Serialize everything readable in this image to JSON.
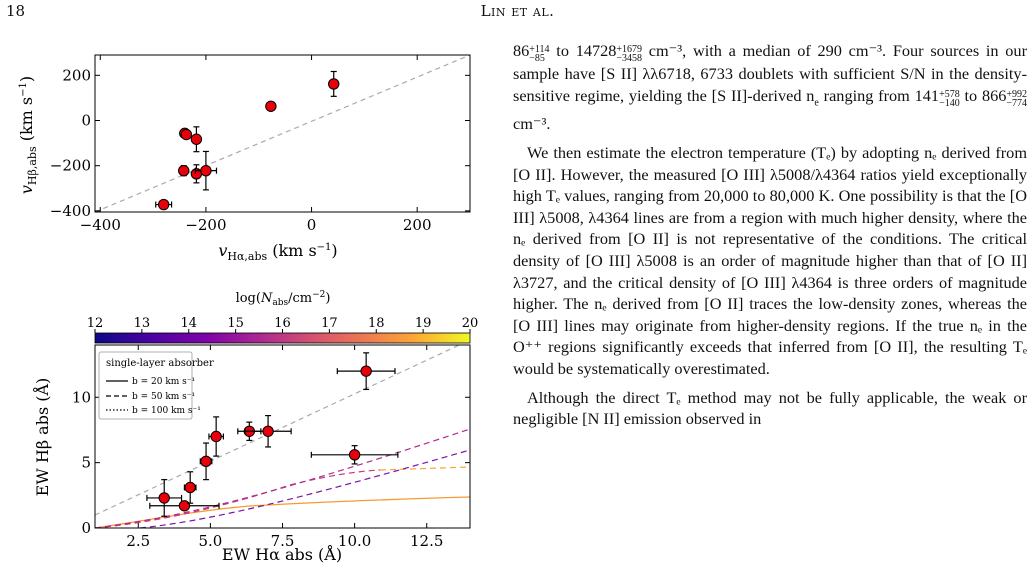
{
  "header": {
    "page_number": "18",
    "running_title": "Lin et al."
  },
  "figure_top": {
    "xlabel": "ν_Hα,abs (km s⁻¹)",
    "ylabel": "ν_Hβ,abs (km s⁻¹)"
  },
  "figure_bottom": {
    "colorbar_label": "log(N_abs/cm⁻²)",
    "colorbar_ticks": [
      "12",
      "13",
      "14",
      "15",
      "16",
      "17",
      "18",
      "19",
      "20"
    ],
    "xlabel": "EW Hα abs (Å)",
    "ylabel": "EW Hβ abs (Å)",
    "legend_title": "single-layer absorber",
    "legend_items": [
      "b = 20 km s⁻¹",
      "b = 50 km s⁻¹",
      "b = 100 km s⁻¹"
    ]
  },
  "chart_data": [
    {
      "type": "scatter",
      "title": "",
      "xlabel": "ν_Hα,abs (km s⁻¹)",
      "ylabel": "ν_Hβ,abs (km s⁻¹)",
      "xlim": [
        -410,
        300
      ],
      "ylim": [
        -405,
        290
      ],
      "xticks": [
        -400,
        -200,
        0,
        200
      ],
      "yticks": [
        -400,
        -200,
        0,
        200
      ],
      "points": [
        {
          "x": -280,
          "y": -372,
          "xerr": 15,
          "yerr": 0
        },
        {
          "x": -242,
          "y": -222,
          "xerr": 8,
          "yerr": 22
        },
        {
          "x": -240,
          "y": -57,
          "xerr": 8,
          "yerr": 12
        },
        {
          "x": -237,
          "y": -62,
          "xerr": 6,
          "yerr": 10
        },
        {
          "x": -218,
          "y": -83,
          "xerr": 6,
          "yerr": 55
        },
        {
          "x": -218,
          "y": -236,
          "xerr": 8,
          "yerr": 40
        },
        {
          "x": -200,
          "y": -222,
          "xerr": 20,
          "yerr": 85
        },
        {
          "x": -77,
          "y": 63,
          "xerr": 3,
          "yerr": 6
        },
        {
          "x": 42,
          "y": 162,
          "xerr": 4,
          "yerr": 55
        }
      ],
      "reference_line": "y = x (dashed grey)",
      "grid": false
    },
    {
      "type": "scatter",
      "title": "",
      "xlabel": "EW Hα abs (Å)",
      "ylabel": "EW Hβ abs (Å)",
      "xlim": [
        1,
        14
      ],
      "ylim": [
        0,
        14
      ],
      "xticks": [
        2.5,
        5.0,
        7.5,
        10.0,
        12.5
      ],
      "yticks": [
        0,
        5,
        10
      ],
      "points": [
        {
          "x": 3.4,
          "y": 2.3,
          "xerr": 0.6,
          "yerr": 1.4
        },
        {
          "x": 4.1,
          "y": 1.7,
          "xerr": 1.2,
          "yerr": 0.3
        },
        {
          "x": 4.3,
          "y": 3.1,
          "xerr": 0.2,
          "yerr": 1.2
        },
        {
          "x": 4.85,
          "y": 5.1,
          "xerr": 0.2,
          "yerr": 1.4
        },
        {
          "x": 5.2,
          "y": 7.0,
          "xerr": 0.25,
          "yerr": 1.5
        },
        {
          "x": 6.35,
          "y": 7.4,
          "xerr": 0.4,
          "yerr": 0.7
        },
        {
          "x": 7.0,
          "y": 7.4,
          "xerr": 0.8,
          "yerr": 1.2
        },
        {
          "x": 10.0,
          "y": 5.6,
          "xerr": 1.5,
          "yerr": 0.7
        },
        {
          "x": 10.4,
          "y": 12.0,
          "xerr": 1.0,
          "yerr": 1.4
        }
      ],
      "reference_line": "y = x (dashed grey)",
      "model_curves": "single-layer absorber tracks, coloured by log(N_abs/cm⁻²) from 12 to 20",
      "legend_placement": "upper-left",
      "grid": false
    }
  ],
  "body": {
    "p1a": "86",
    "p1a_up": "+114",
    "p1a_dn": "−85",
    "p1b": " to 14728",
    "p1b_up": "+1679",
    "p1b_dn": "−3458",
    "p1c": " cm⁻³, with a median of 290 cm⁻³. Four sources in our sample have [S II] λλ6718, 6733 doublets with sufficient S/N in the density-sensitive regime, yielding the [S II]-derived n",
    "p1d": "e",
    "p1e": " ranging from 141",
    "p1e_up": "+578",
    "p1e_dn": "−140",
    "p1f": " to 866",
    "p1f_up": "+992",
    "p1f_dn": "−774",
    "p1g": " cm⁻³.",
    "p2": "We then estimate the electron temperature (Tₑ) by adopting nₑ derived from [O II]. However, the measured [O III] λ5008/λ4364 ratios yield exceptionally high Tₑ values, ranging from 20,000 to 80,000 K. One possibility is that the [O III] λ5008, λ4364 lines are from a region with much higher density, where the nₑ derived from [O II] is not representative of the conditions. The critical density of [O III] λ5008 is an order of magnitude higher than that of [O II] λ3727, and the critical density of [O III] λ4364 is three orders of magnitude higher. The nₑ derived from [O II] traces the low-density zones, whereas the [O III] lines may originate from higher-density regions. If the true nₑ in the O⁺⁺ regions significantly exceeds that inferred from [O II], the resulting Tₑ would be systematically overestimated.",
    "p3": "Although the direct Tₑ method may not be fully applicable, the weak or negligible [N II] emission observed in"
  }
}
